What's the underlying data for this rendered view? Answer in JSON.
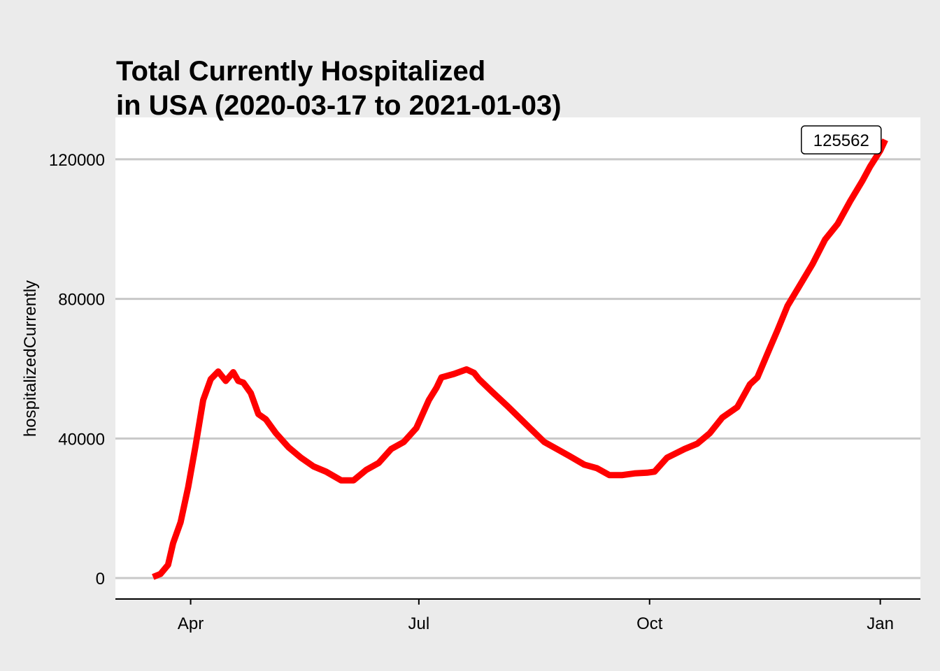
{
  "chart_data": {
    "type": "line",
    "title": "Total Currently Hospitalized",
    "subtitle": "in USA (2020-03-17 to 2021-01-03)",
    "xlabel": "",
    "ylabel": "hospitalizedCurrently",
    "x_ticks": [
      {
        "date": "2020-04-01",
        "label": "Apr"
      },
      {
        "date": "2020-07-01",
        "label": "Jul"
      },
      {
        "date": "2020-10-01",
        "label": "Oct"
      },
      {
        "date": "2021-01-01",
        "label": "Jan"
      }
    ],
    "y_ticks": [
      0,
      40000,
      80000,
      120000
    ],
    "ylim": [
      -6000,
      132000
    ],
    "xlim": [
      "2020-03-02",
      "2021-01-17"
    ],
    "grid": "horizontal major",
    "line_color": "#ff0000",
    "annotation": {
      "date": "2021-01-03",
      "value": 125562,
      "text": "125562"
    },
    "series": [
      {
        "x": [
          "2020-03-17",
          "2020-03-20",
          "2020-03-23",
          "2020-03-25",
          "2020-03-28",
          "2020-03-31",
          "2020-04-03",
          "2020-04-06",
          "2020-04-09",
          "2020-04-12",
          "2020-04-15",
          "2020-04-18",
          "2020-04-20",
          "2020-04-22",
          "2020-04-25",
          "2020-04-28",
          "2020-05-01",
          "2020-05-05",
          "2020-05-10",
          "2020-05-15",
          "2020-05-20",
          "2020-05-25",
          "2020-05-31",
          "2020-06-05",
          "2020-06-10",
          "2020-06-15",
          "2020-06-20",
          "2020-06-25",
          "2020-06-30",
          "2020-07-05",
          "2020-07-08",
          "2020-07-10",
          "2020-07-15",
          "2020-07-20",
          "2020-07-23",
          "2020-07-25",
          "2020-07-30",
          "2020-08-05",
          "2020-08-10",
          "2020-08-15",
          "2020-08-20",
          "2020-08-25",
          "2020-08-30",
          "2020-09-05",
          "2020-09-10",
          "2020-09-15",
          "2020-09-20",
          "2020-09-25",
          "2020-09-30",
          "2020-10-03",
          "2020-10-08",
          "2020-10-15",
          "2020-10-20",
          "2020-10-25",
          "2020-10-30",
          "2020-11-05",
          "2020-11-10",
          "2020-11-13",
          "2020-11-18",
          "2020-11-21",
          "2020-11-25",
          "2020-11-30",
          "2020-12-05",
          "2020-12-10",
          "2020-12-15",
          "2020-12-20",
          "2020-12-25",
          "2020-12-28",
          "2021-01-01",
          "2021-01-03"
        ],
        "values": [
          300,
          1200,
          3800,
          10000,
          16000,
          26000,
          38000,
          51000,
          57000,
          59200,
          56500,
          59000,
          56500,
          56000,
          53000,
          47000,
          45500,
          41500,
          37500,
          34500,
          32000,
          30500,
          28000,
          28000,
          31000,
          33000,
          37000,
          39000,
          43000,
          51000,
          54500,
          57500,
          58500,
          59800,
          58800,
          57000,
          53500,
          49500,
          46000,
          42500,
          39000,
          37000,
          35000,
          32500,
          31500,
          29500,
          29500,
          30000,
          30200,
          30500,
          34500,
          37000,
          38500,
          41500,
          46000,
          49000,
          55500,
          57500,
          66000,
          71000,
          78000,
          84000,
          90000,
          97000,
          101500,
          108000,
          114000,
          118000,
          122500,
          125562
        ]
      }
    ]
  }
}
